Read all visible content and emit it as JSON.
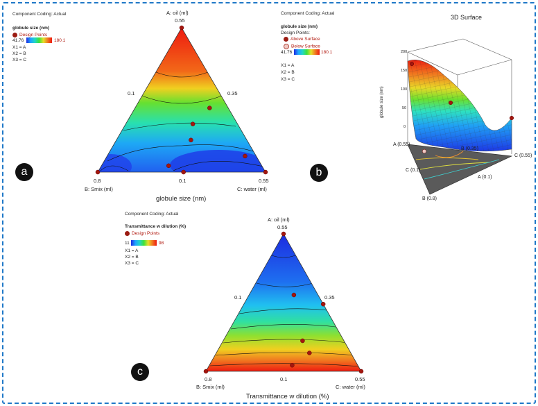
{
  "panel_a": {
    "coding": "Component Coding: Actual",
    "legend_title": "globule size (nm)",
    "design_points": "Design Points",
    "scale_min": "41.76",
    "scale_max": "180.1",
    "x1": "X1 = A",
    "x2": "X2 = B",
    "x3": "X3 = C",
    "vertex_top_name": "A: oil (ml)",
    "vertex_top_value": "0.55",
    "left_mid": "0.1",
    "right_mid": "0.35",
    "bottom_left_value": "0.8",
    "bottom_left_name": "B: Smix (ml)",
    "bottom_mid": "0.1",
    "bottom_right_value": "0.55",
    "bottom_right_name": "C: water (ml)",
    "axis_title": "globule size (nm)",
    "badge": "a"
  },
  "panel_b": {
    "coding": "Component Coding: Actual",
    "legend_title": "globule size (nm)",
    "design_points": "Design Points:",
    "above": "Above Surface",
    "below": "Below Surface",
    "scale_min": "41.76",
    "scale_max": "180.1",
    "x1": "X1 = A",
    "x2": "X2 = B",
    "x3": "X3 = C",
    "title": "3D Surface",
    "zlabel": "globule size (nm)",
    "z_ticks": [
      "200",
      "150",
      "100",
      "50",
      "0"
    ],
    "label_a": "A (0.55)",
    "label_b_mid": "B (0.35)",
    "label_c_right": "C (0.55)",
    "label_c_left": "C (0.1)",
    "label_a_low": "A (0.1)",
    "label_b_low": "B (0.8)",
    "badge": "b"
  },
  "panel_c": {
    "coding": "Component Coding: Actual",
    "legend_title": "Transmittance w dilution   (%)",
    "design_points": "Design Points",
    "scale_min": "11",
    "scale_max": "98",
    "x1": "X1 = A",
    "x2": "X2 = B",
    "x3": "X3 = C",
    "vertex_top_name": "A: oil (ml)",
    "vertex_top_value": "0.55",
    "left_mid": "0.1",
    "right_mid": "0.35",
    "bottom_left_value": "0.8",
    "bottom_left_name": "B: Smix (ml)",
    "bottom_mid": "0.1",
    "bottom_right_value": "0.55",
    "bottom_right_name": "C: water (ml)",
    "axis_title": "Transmittance w dilution  (%)",
    "badge": "c"
  },
  "chart_data": [
    {
      "type": "heatmap",
      "subtype": "ternary-contour",
      "title": "",
      "response": "globule size (nm)",
      "components": [
        "A: oil (ml)",
        "B: Smix (ml)",
        "C: water (ml)"
      ],
      "color_range": [
        41.76,
        180.1
      ],
      "colors": {
        "low": "#1d2be0",
        "high": "#ee1a10"
      },
      "design_points": [
        {
          "A": 0.55,
          "B": 0.35,
          "C": 0.1
        },
        {
          "A": 0.1,
          "B": 0.8,
          "C": 0.1
        },
        {
          "A": 0.1,
          "B": 0.35,
          "C": 0.55
        },
        {
          "A": 0.2,
          "B": 0.5,
          "C": 0.3
        },
        {
          "A": 0.25,
          "B": 0.47,
          "C": 0.28
        },
        {
          "A": 0.15,
          "B": 0.38,
          "C": 0.47
        },
        {
          "A": 0.12,
          "B": 0.6,
          "C": 0.28
        },
        {
          "A": 0.1,
          "B": 0.57,
          "C": 0.33
        },
        {
          "A": 0.3,
          "B": 0.4,
          "C": 0.3
        }
      ]
    },
    {
      "type": "heatmap",
      "subtype": "3d-surface",
      "title": "3D Surface",
      "zlabel": "globule size (nm)",
      "zlim": [
        0,
        200
      ],
      "color_range": [
        41.76,
        180.1
      ]
    },
    {
      "type": "heatmap",
      "subtype": "ternary-contour",
      "title": "",
      "response": "Transmittance w dilution (%)",
      "components": [
        "A: oil (ml)",
        "B: Smix (ml)",
        "C: water (ml)"
      ],
      "color_range": [
        11,
        98
      ],
      "colors": {
        "low": "#1d2be0",
        "high": "#ee1a10"
      },
      "design_points": [
        {
          "A": 0.55,
          "B": 0.35,
          "C": 0.1
        },
        {
          "A": 0.1,
          "B": 0.8,
          "C": 0.1
        },
        {
          "A": 0.1,
          "B": 0.35,
          "C": 0.55
        },
        {
          "A": 0.2,
          "B": 0.47,
          "C": 0.33
        },
        {
          "A": 0.16,
          "B": 0.47,
          "C": 0.37
        },
        {
          "A": 0.12,
          "B": 0.54,
          "C": 0.34
        },
        {
          "A": 0.35,
          "B": 0.42,
          "C": 0.23
        },
        {
          "A": 0.32,
          "B": 0.35,
          "C": 0.33
        }
      ]
    }
  ]
}
